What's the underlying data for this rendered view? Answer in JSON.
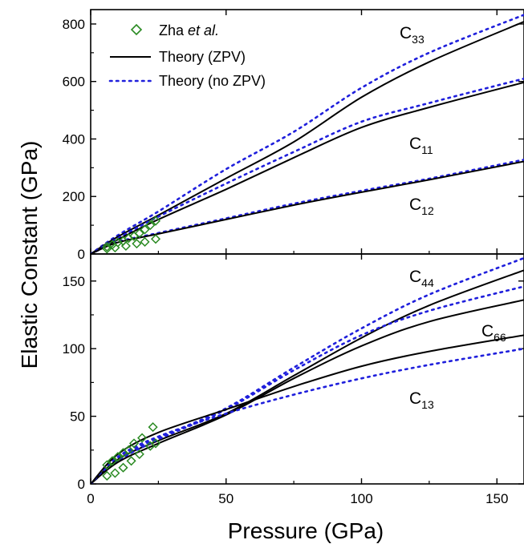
{
  "chart_data": {
    "type": "line",
    "xlabel": "Pressure (GPa)",
    "ylabel": "Elastic Constant (GPa)",
    "xlim": [
      0,
      160
    ],
    "x_ticks": [
      "0",
      "50",
      "100",
      "150"
    ],
    "legend": {
      "placement": "top-left",
      "entries": [
        {
          "label_main": "Zha ",
          "label_italic": "et al.",
          "marker": "diamond",
          "color": "#2a8a22"
        },
        {
          "label_main": "Theory (ZPV)",
          "label_italic": "",
          "style": "solid",
          "color": "#000000"
        },
        {
          "label_main": "Theory (no ZPV)",
          "label_italic": "",
          "style": "dotted",
          "color": "#1f1fdc"
        }
      ]
    },
    "colors": {
      "zpv": "#000000",
      "no_zpv": "#1f1fdc",
      "experiment": "#2a8a22"
    },
    "panels": [
      {
        "name": "top",
        "ylim": [
          0,
          850
        ],
        "y_ticks": [
          0,
          200,
          400,
          600,
          800
        ],
        "curves": [
          {
            "name": "C33",
            "base": "C",
            "sub": "33",
            "zpv": [
              [
                0,
                0
              ],
              [
                10,
                60
              ],
              [
                25,
                135
              ],
              [
                50,
                263
              ],
              [
                75,
                390
              ],
              [
                100,
                545
              ],
              [
                125,
                668
              ],
              [
                160,
                808
              ]
            ],
            "no_zpv": [
              [
                0,
                0
              ],
              [
                10,
                65
              ],
              [
                25,
                148
              ],
              [
                50,
                295
              ],
              [
                75,
                425
              ],
              [
                100,
                578
              ],
              [
                125,
                700
              ],
              [
                160,
                832
              ]
            ]
          },
          {
            "name": "C11",
            "base": "C",
            "sub": "11",
            "zpv": [
              [
                0,
                0
              ],
              [
                10,
                50
              ],
              [
                25,
                120
              ],
              [
                50,
                225
              ],
              [
                75,
                335
              ],
              [
                100,
                440
              ],
              [
                125,
                510
              ],
              [
                160,
                597
              ]
            ],
            "no_zpv": [
              [
                0,
                0
              ],
              [
                10,
                55
              ],
              [
                25,
                130
              ],
              [
                50,
                245
              ],
              [
                75,
                355
              ],
              [
                100,
                460
              ],
              [
                125,
                525
              ],
              [
                160,
                610
              ]
            ]
          },
          {
            "name": "C12",
            "base": "C",
            "sub": "12",
            "zpv": [
              [
                0,
                0
              ],
              [
                10,
                40
              ],
              [
                25,
                70
              ],
              [
                50,
                120
              ],
              [
                75,
                170
              ],
              [
                100,
                215
              ],
              [
                125,
                258
              ],
              [
                160,
                322
              ]
            ],
            "no_zpv": [
              [
                0,
                0
              ],
              [
                10,
                42
              ],
              [
                25,
                73
              ],
              [
                50,
                124
              ],
              [
                75,
                175
              ],
              [
                100,
                220
              ],
              [
                125,
                262
              ],
              [
                160,
                328
              ]
            ]
          }
        ],
        "experiment": [
          [
            6,
            25
          ],
          [
            8,
            32
          ],
          [
            10,
            40
          ],
          [
            12,
            45
          ],
          [
            14,
            55
          ],
          [
            16,
            62
          ],
          [
            18,
            72
          ],
          [
            20,
            85
          ],
          [
            22,
            100
          ],
          [
            24,
            115
          ],
          [
            6,
            18
          ],
          [
            9,
            22
          ],
          [
            13,
            28
          ],
          [
            17,
            36
          ],
          [
            20,
            42
          ],
          [
            24,
            52
          ]
        ]
      },
      {
        "name": "bottom",
        "ylim": [
          0,
          170
        ],
        "y_ticks": [
          0,
          50,
          100,
          150
        ],
        "curves": [
          {
            "name": "C44",
            "base": "C",
            "sub": "44",
            "zpv": [
              [
                0,
                0
              ],
              [
                10,
                18
              ],
              [
                25,
                32
              ],
              [
                50,
                52
              ],
              [
                75,
                80
              ],
              [
                100,
                108
              ],
              [
                125,
                132
              ],
              [
                160,
                158
              ]
            ],
            "no_zpv": [
              [
                0,
                0
              ],
              [
                10,
                19
              ],
              [
                25,
                34
              ],
              [
                50,
                56
              ],
              [
                75,
                86
              ],
              [
                100,
                115
              ],
              [
                125,
                140
              ],
              [
                160,
                167
              ]
            ]
          },
          {
            "name": "C66",
            "base": "C",
            "sub": "66",
            "zpv": [
              [
                0,
                0
              ],
              [
                10,
                16
              ],
              [
                25,
                30
              ],
              [
                50,
                51
              ],
              [
                75,
                78
              ],
              [
                100,
                102
              ],
              [
                125,
                120
              ],
              [
                160,
                136
              ]
            ],
            "no_zpv": [
              [
                0,
                0
              ],
              [
                10,
                17
              ],
              [
                25,
                33
              ],
              [
                50,
                55
              ],
              [
                75,
                84
              ],
              [
                100,
                110
              ],
              [
                125,
                128
              ],
              [
                160,
                146
              ]
            ]
          },
          {
            "name": "C13",
            "base": "C",
            "sub": "13",
            "zpv": [
              [
                0,
                0
              ],
              [
                10,
                22
              ],
              [
                25,
                38
              ],
              [
                50,
                55
              ],
              [
                75,
                72
              ],
              [
                100,
                87
              ],
              [
                125,
                98
              ],
              [
                160,
                110
              ]
            ],
            "no_zpv": [
              [
                0,
                0
              ],
              [
                10,
                20
              ],
              [
                25,
                35
              ],
              [
                50,
                52
              ],
              [
                75,
                66
              ],
              [
                100,
                78
              ],
              [
                125,
                88
              ],
              [
                160,
                100
              ]
            ]
          }
        ],
        "experiment": [
          [
            6,
            14
          ],
          [
            8,
            17
          ],
          [
            10,
            20
          ],
          [
            12,
            23
          ],
          [
            14,
            25
          ],
          [
            16,
            30
          ],
          [
            19,
            34
          ],
          [
            23,
            42
          ],
          [
            6,
            6
          ],
          [
            9,
            8
          ],
          [
            12,
            12
          ],
          [
            15,
            17
          ],
          [
            18,
            22
          ],
          [
            22,
            28
          ],
          [
            24,
            30
          ]
        ]
      }
    ]
  }
}
